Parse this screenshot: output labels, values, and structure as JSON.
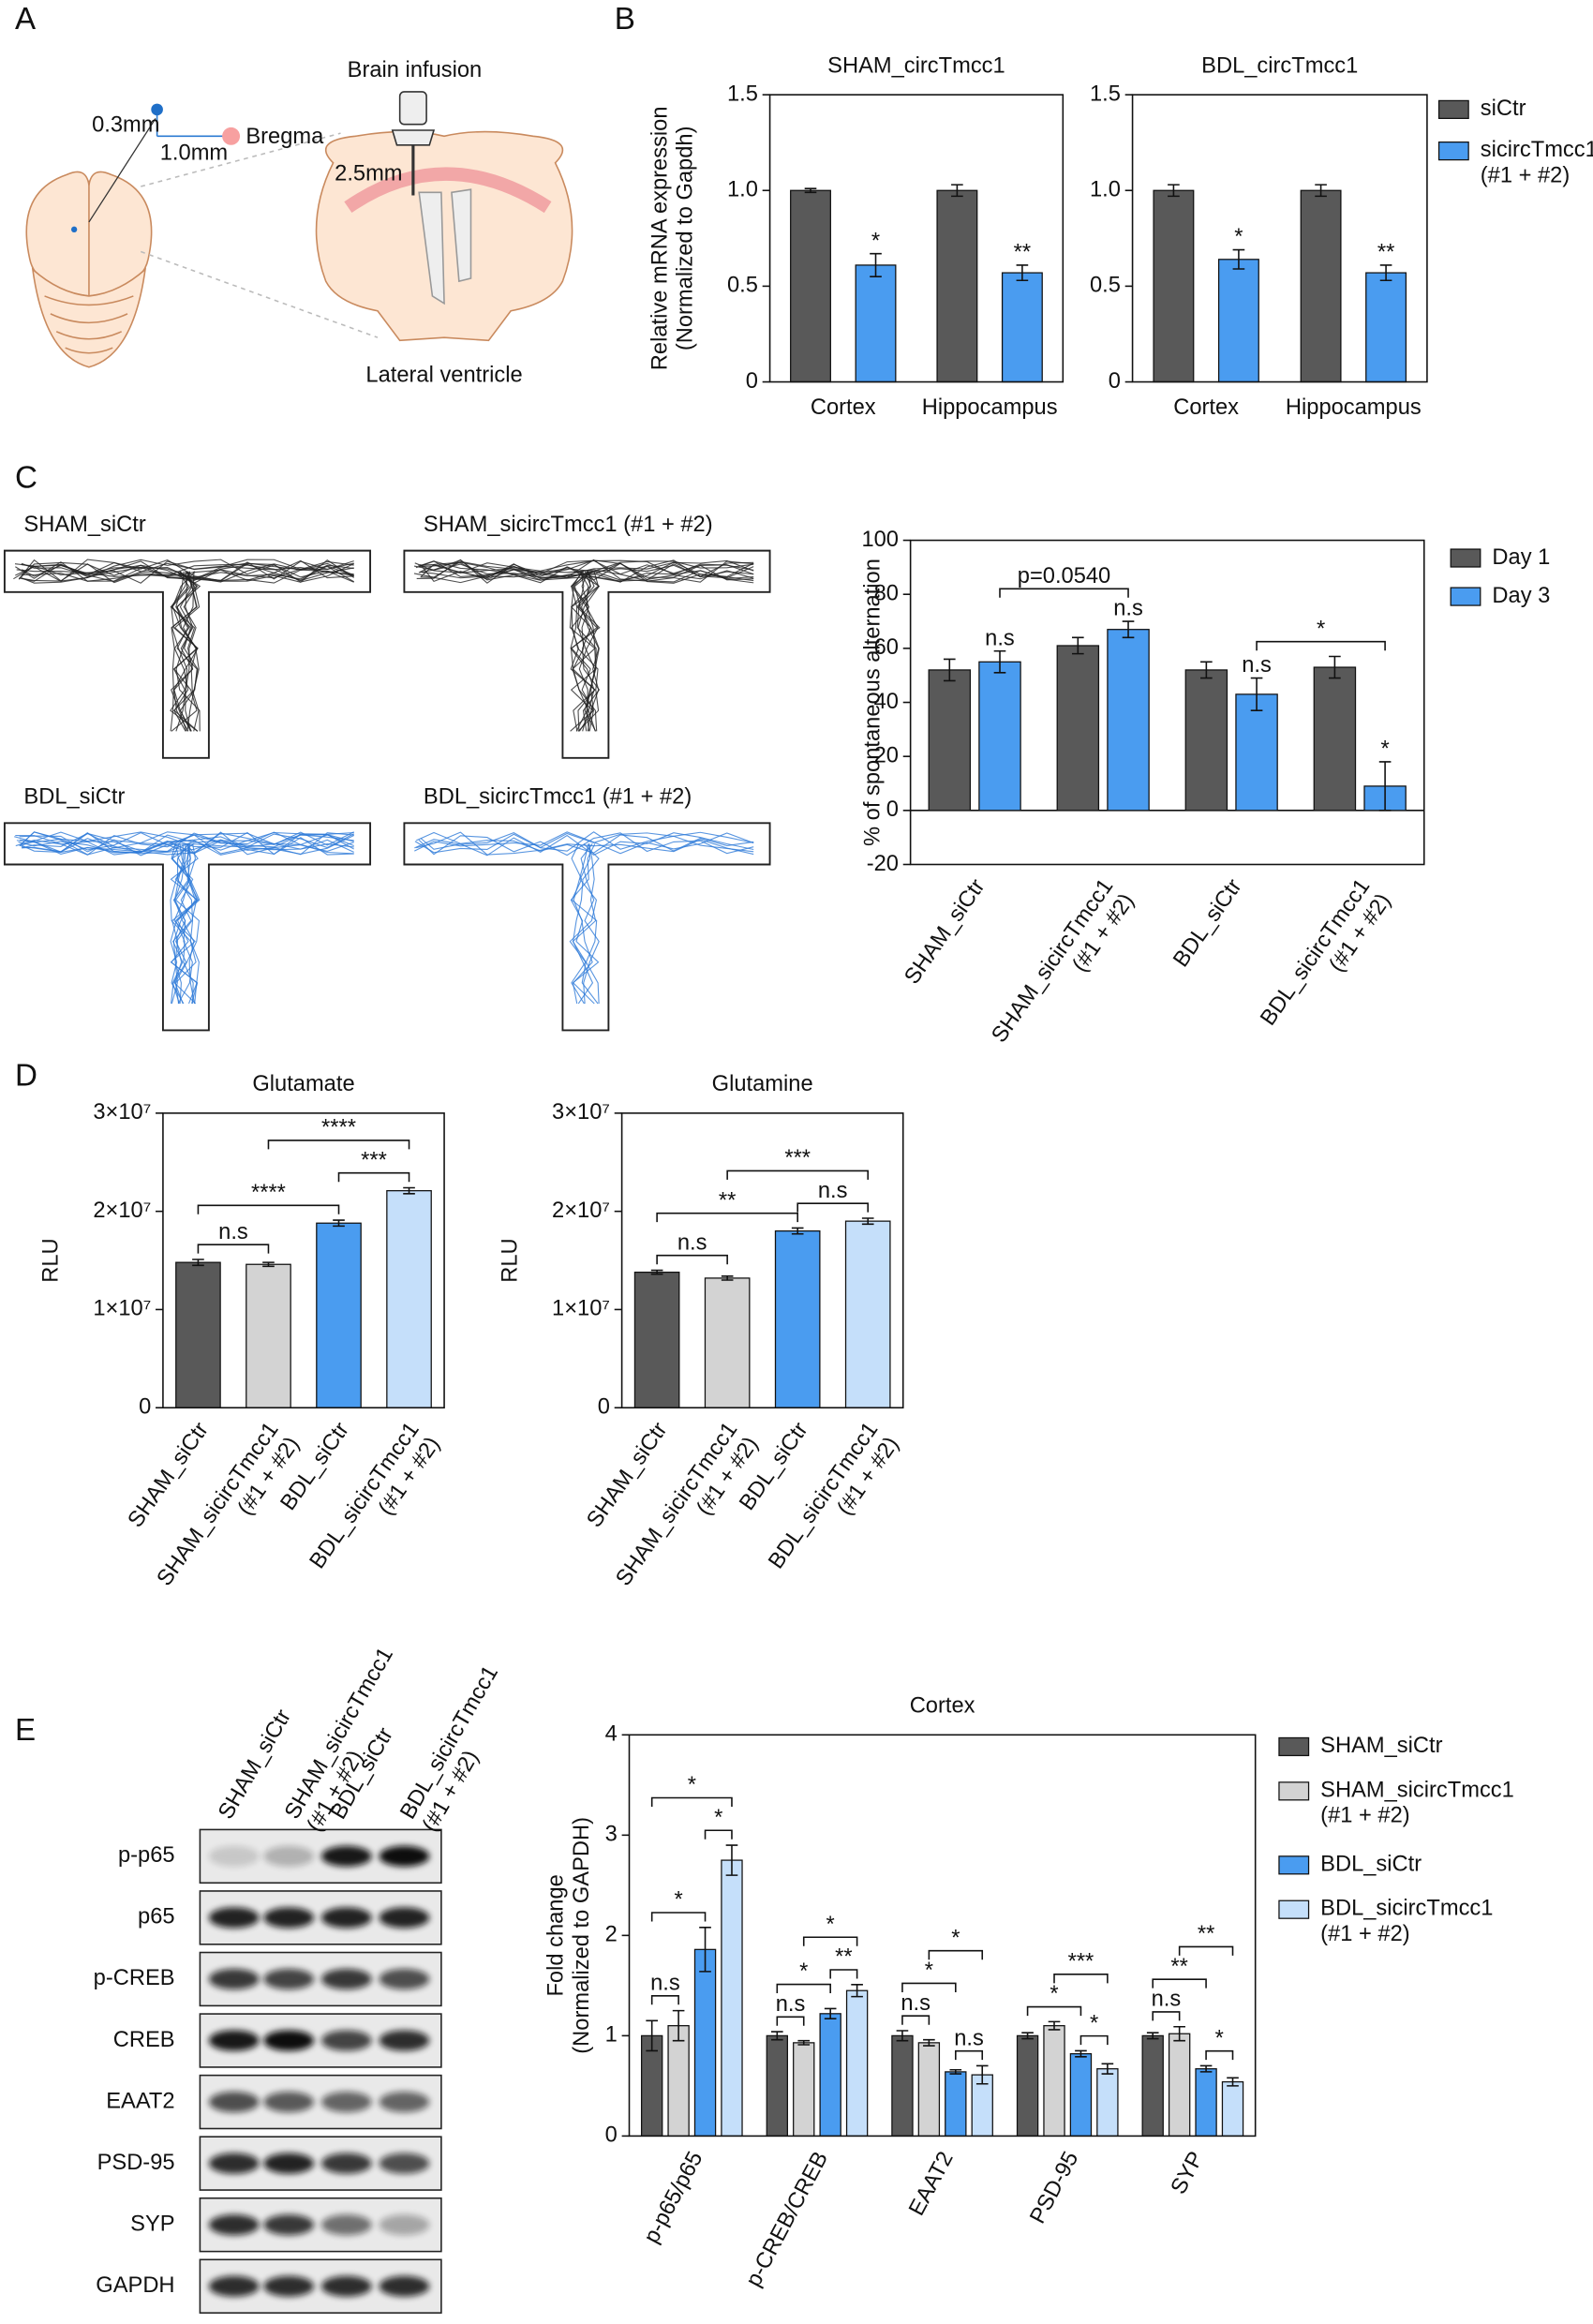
{
  "panels": [
    "A",
    "B",
    "C",
    "D",
    "E"
  ],
  "diagram": {
    "top": "Brain infusion",
    "distance_ap": "0.3mm",
    "distance_ml": "1.0mm",
    "landmark": "Bregma",
    "depth": "2.5mm",
    "target": "Lateral ventricle"
  },
  "tmaze": {
    "labels": [
      "SHAM_siCtr",
      "SHAM_sicircTmcc1 (#1 + #2)",
      "BDL_siCtr",
      "BDL_sicircTmcc1 (#1 + #2)"
    ]
  },
  "blot": {
    "lanes": [
      "SHAM_siCtr",
      "SHAM_sicircTmcc1\n(#1 + #2)",
      "BDL_siCtr",
      "BDL_sicircTmcc1\n(#1 + #2)"
    ],
    "rows": [
      "p-p65",
      "p65",
      "p-CREB",
      "CREB",
      "EAAT2",
      "PSD-95",
      "SYP",
      "GAPDH"
    ]
  },
  "chart_data": [
    {
      "type": "bar",
      "title": "SHAM_circTmcc1",
      "ylabel": "Relative mRNA expression\n(Normalized to Gapdh)",
      "categories": [
        "Cortex",
        "Hippocampus"
      ],
      "series": [
        {
          "name": "siCtr",
          "color": "#595959",
          "values": [
            1.0,
            1.0
          ],
          "errors": [
            0.01,
            0.03
          ]
        },
        {
          "name": "sicircTmcc1\n(#1 + #2)",
          "color": "#4a9cf0",
          "values": [
            0.61,
            0.57
          ],
          "errors": [
            0.06,
            0.04
          ]
        }
      ],
      "ylim": [
        0,
        1.5
      ],
      "yticks": [
        0,
        0.5,
        {
          "value": 1,
          "label": "1.0"
        },
        1.5
      ],
      "annotations": [
        {
          "text": "*",
          "bar": [
            1,
            0
          ]
        },
        {
          "text": "**",
          "bar": [
            1,
            1
          ]
        }
      ]
    },
    {
      "type": "bar",
      "title": "BDL_circTmcc1",
      "legend": "outside right",
      "categories": [
        "Cortex",
        "Hippocampus"
      ],
      "series": [
        {
          "name": "siCtr",
          "color": "#595959",
          "values": [
            1.0,
            1.0
          ],
          "errors": [
            0.03,
            0.03
          ]
        },
        {
          "name": "sicircTmcc1\n(#1 + #2)",
          "color": "#4a9cf0",
          "values": [
            0.64,
            0.57
          ],
          "errors": [
            0.05,
            0.04
          ]
        }
      ],
      "ylim": [
        0,
        1.5
      ],
      "yticks": [
        0,
        0.5,
        {
          "value": 1,
          "label": "1.0"
        },
        1.5
      ],
      "annotations": [
        {
          "text": "*",
          "bar": [
            1,
            0
          ]
        },
        {
          "text": "**",
          "bar": [
            1,
            1
          ]
        }
      ]
    },
    {
      "type": "bar",
      "ylabel": "% of spontaneous alternation",
      "legend": "outside right",
      "categories": [
        "SHAM_siCtr",
        "SHAM_sicircTmcc1\n(#1 + #2)",
        "BDL_siCtr",
        "BDL_sicircTmcc1\n(#1 + #2)"
      ],
      "series": [
        {
          "name": "Day 1",
          "color": "#595959",
          "values": [
            52,
            61,
            52,
            53
          ],
          "errors": [
            4,
            3,
            3,
            4
          ]
        },
        {
          "name": "Day 3",
          "color": "#4a9cf0",
          "values": [
            55,
            67,
            43,
            9
          ],
          "errors": [
            4,
            3,
            6,
            9
          ]
        }
      ],
      "ylim": [
        -20,
        100
      ],
      "yticks": [
        -20,
        0,
        20,
        40,
        60,
        80,
        100
      ],
      "annotations": [
        {
          "text": "n.s",
          "bar": [
            1,
            0
          ]
        },
        {
          "text": "n.s",
          "bar": [
            1,
            1
          ]
        },
        {
          "text": "n.s",
          "bar": [
            1,
            2
          ]
        },
        {
          "text": "*",
          "bar": [
            1,
            3
          ]
        },
        {
          "text": "p=0.0540",
          "between": [
            [
              1,
              0
            ],
            [
              1,
              1
            ]
          ]
        },
        {
          "text": "*",
          "between": [
            [
              1,
              2
            ],
            [
              1,
              3
            ]
          ]
        }
      ]
    },
    {
      "type": "bar",
      "title": "Glutamate",
      "ylabel": "RLU",
      "categories": [
        "SHAM_siCtr",
        "SHAM_sicircTmcc1\n(#1 + #2)",
        "BDL_siCtr",
        "BDL_sicircTmcc1\n(#1 + #2)"
      ],
      "values": [
        14800000,
        14600000,
        18800000,
        22100000
      ],
      "errors": [
        300000,
        200000,
        300000,
        300000
      ],
      "colors": [
        "#595959",
        "#d3d3d3",
        "#4a9cf0",
        "#c5dffa"
      ],
      "ylim": [
        0,
        30000000
      ],
      "yticks": [
        0,
        {
          "value": 10000000,
          "label": "1×10⁷"
        },
        {
          "value": 20000000,
          "label": "2×10⁷"
        },
        {
          "value": 30000000,
          "label": "3×10⁷"
        }
      ],
      "annotations": [
        {
          "text": "n.s",
          "between": [
            0,
            1
          ]
        },
        {
          "text": "***",
          "between": [
            2,
            3
          ]
        },
        {
          "text": "****",
          "between": [
            0,
            2
          ]
        },
        {
          "text": "****",
          "between": [
            1,
            3
          ]
        }
      ]
    },
    {
      "type": "bar",
      "title": "Glutamine",
      "ylabel": "RLU",
      "categories": [
        "SHAM_siCtr",
        "SHAM_sicircTmcc1\n(#1 + #2)",
        "BDL_siCtr",
        "BDL_sicircTmcc1\n(#1 + #2)"
      ],
      "values": [
        13800000,
        13200000,
        18000000,
        19000000
      ],
      "errors": [
        200000,
        200000,
        300000,
        300000
      ],
      "colors": [
        "#595959",
        "#d3d3d3",
        "#4a9cf0",
        "#c5dffa"
      ],
      "ylim": [
        0,
        30000000
      ],
      "yticks": [
        0,
        {
          "value": 10000000,
          "label": "1×10⁷"
        },
        {
          "value": 20000000,
          "label": "2×10⁷"
        },
        {
          "value": 30000000,
          "label": "3×10⁷"
        }
      ],
      "annotations": [
        {
          "text": "n.s",
          "between": [
            0,
            1
          ]
        },
        {
          "text": "n.s",
          "between": [
            2,
            3
          ]
        },
        {
          "text": "**",
          "between": [
            0,
            2
          ]
        },
        {
          "text": "***",
          "between": [
            1,
            3
          ]
        }
      ]
    },
    {
      "type": "bar",
      "title": "Cortex",
      "ylabel": "Fold change\n(Normalized to GAPDH)",
      "legend": "outside right",
      "categories": [
        "p-p65/p65",
        "p-CREB/CREB",
        "EAAT2",
        "PSD-95",
        "SYP"
      ],
      "series": [
        {
          "name": "SHAM_siCtr",
          "color": "#595959",
          "values": [
            1,
            1,
            1,
            1,
            1
          ],
          "errors": [
            0.15,
            0.04,
            0.05,
            0.03,
            0.03
          ]
        },
        {
          "name": "SHAM_sicircTmcc1\n(#1 + #2)",
          "color": "#d3d3d3",
          "values": [
            1.1,
            0.93,
            0.93,
            1.1,
            1.02
          ],
          "errors": [
            0.15,
            0.02,
            0.03,
            0.04,
            0.07
          ]
        },
        {
          "name": "BDL_siCtr",
          "color": "#4a9cf0",
          "values": [
            1.86,
            1.22,
            0.64,
            0.82,
            0.67
          ],
          "errors": [
            0.22,
            0.05,
            0.02,
            0.03,
            0.03
          ]
        },
        {
          "name": "BDL_sicircTmcc1\n(#1 + #2)",
          "color": "#c5dffa",
          "values": [
            2.75,
            1.45,
            0.61,
            0.67,
            0.54
          ],
          "errors": [
            0.15,
            0.06,
            0.09,
            0.05,
            0.04
          ]
        }
      ],
      "ylim": [
        0,
        4
      ],
      "yticks": [
        0,
        1,
        2,
        3,
        4
      ],
      "annotations": [
        {
          "text": "n.s",
          "between": [
            [
              0,
              0
            ],
            [
              1,
              0
            ]
          ]
        },
        {
          "text": "*",
          "between": [
            [
              2,
              0
            ],
            [
              3,
              0
            ]
          ]
        },
        {
          "text": "*",
          "between": [
            [
              0,
              0
            ],
            [
              2,
              0
            ]
          ]
        },
        {
          "text": "*",
          "between": [
            [
              0,
              0
            ],
            [
              3,
              0
            ]
          ]
        },
        {
          "text": "n.s",
          "between": [
            [
              0,
              1
            ],
            [
              1,
              1
            ]
          ]
        },
        {
          "text": "**",
          "between": [
            [
              2,
              1
            ],
            [
              3,
              1
            ]
          ]
        },
        {
          "text": "*",
          "between": [
            [
              0,
              1
            ],
            [
              2,
              1
            ]
          ]
        },
        {
          "text": "*",
          "between": [
            [
              1,
              1
            ],
            [
              3,
              1
            ]
          ]
        },
        {
          "text": "n.s",
          "between": [
            [
              0,
              2
            ],
            [
              1,
              2
            ]
          ]
        },
        {
          "text": "n.s",
          "between": [
            [
              2,
              2
            ],
            [
              3,
              2
            ]
          ]
        },
        {
          "text": "*",
          "between": [
            [
              0,
              2
            ],
            [
              2,
              2
            ]
          ]
        },
        {
          "text": "*",
          "between": [
            [
              1,
              2
            ],
            [
              3,
              2
            ]
          ]
        },
        {
          "text": "*",
          "between": [
            [
              2,
              3
            ],
            [
              3,
              3
            ]
          ]
        },
        {
          "text": "*",
          "between": [
            [
              0,
              3
            ],
            [
              2,
              3
            ]
          ]
        },
        {
          "text": "***",
          "between": [
            [
              1,
              3
            ],
            [
              3,
              3
            ]
          ]
        },
        {
          "text": "n.s",
          "between": [
            [
              0,
              4
            ],
            [
              1,
              4
            ]
          ]
        },
        {
          "text": "*",
          "between": [
            [
              2,
              4
            ],
            [
              3,
              4
            ]
          ]
        },
        {
          "text": "**",
          "between": [
            [
              0,
              4
            ],
            [
              2,
              4
            ]
          ]
        },
        {
          "text": "**",
          "between": [
            [
              1,
              4
            ],
            [
              3,
              4
            ]
          ]
        }
      ]
    }
  ]
}
